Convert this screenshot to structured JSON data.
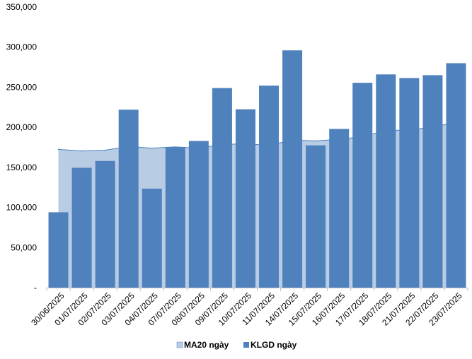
{
  "chart_data": {
    "type": "bar",
    "categories": [
      "30/06/2025",
      "01/07/2025",
      "02/07/2025",
      "03/07/2025",
      "04/07/2025",
      "07/07/2025",
      "08/07/2025",
      "09/07/2025",
      "10/07/2025",
      "11/07/2025",
      "14/07/2025",
      "15/07/2025",
      "16/07/2025",
      "17/07/2025",
      "18/07/2025",
      "21/07/2025",
      "22/07/2025",
      "23/07/2025"
    ],
    "series": [
      {
        "name": "MA20 ngày",
        "type": "area",
        "color": "#b8cce4",
        "stroke": "#4f81bd",
        "values": [
          172500,
          170500,
          171500,
          176000,
          174000,
          175500,
          174000,
          178500,
          179500,
          177500,
          184000,
          183000,
          185000,
          188500,
          196000,
          196500,
          200500,
          206000
        ]
      },
      {
        "name": "KLGD ngày",
        "type": "bar",
        "color": "#4f81bd",
        "values": [
          94000,
          149500,
          158000,
          222000,
          123500,
          175500,
          183000,
          249000,
          222500,
          252000,
          296000,
          177500,
          198000,
          255500,
          266000,
          261500,
          265000,
          280000
        ]
      }
    ],
    "y_ticks": [
      "-",
      "50,000",
      "100,000",
      "150,000",
      "200,000",
      "250,000",
      "300,000",
      "350,000"
    ],
    "ylim": [
      0,
      350000
    ],
    "grid": false,
    "legend_position": "bottom"
  }
}
